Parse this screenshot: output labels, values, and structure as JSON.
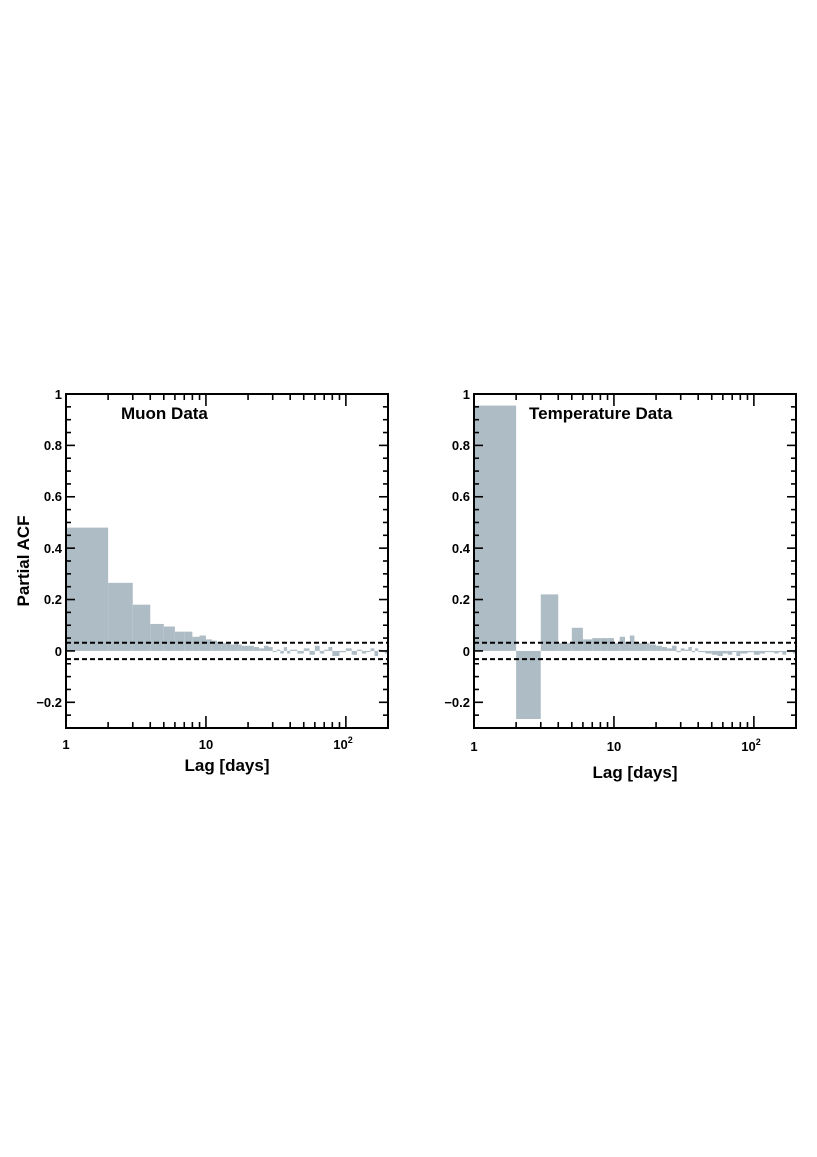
{
  "colors": {
    "bar": "#aebcc5",
    "axis": "#000000"
  },
  "chart_data": [
    {
      "type": "bar",
      "title": "Muon Data",
      "xlabel": "Lag [days]",
      "ylabel": "Partial ACF",
      "xscale": "log",
      "xlim": [
        1,
        200
      ],
      "ylim": [
        -0.3,
        1.0
      ],
      "x_ticks": [
        "1",
        "10",
        "10",
        "2"
      ],
      "y_ticks": [
        "1",
        "0.8",
        "0.6",
        "0.4",
        "0.2",
        "0",
        "−0.2"
      ],
      "confidence_band": [
        -0.032,
        0.032
      ],
      "lags": [
        1,
        2,
        3,
        4,
        5,
        6,
        7,
        8,
        9,
        10,
        11,
        12,
        13,
        14,
        15,
        16,
        17,
        18,
        19,
        20,
        22,
        24,
        26,
        28,
        30,
        32,
        34,
        36,
        38,
        40,
        45,
        50,
        55,
        60,
        65,
        70,
        75,
        80,
        90,
        100,
        110,
        120,
        130,
        140,
        150,
        160,
        170,
        180,
        190,
        200
      ],
      "values": [
        0.48,
        0.265,
        0.18,
        0.105,
        0.095,
        0.075,
        0.075,
        0.055,
        0.06,
        0.045,
        0.04,
        0.035,
        0.03,
        0.03,
        0.025,
        0.03,
        0.025,
        0.02,
        0.02,
        0.02,
        0.015,
        0.01,
        0.02,
        0.015,
        0.0,
        0.005,
        -0.01,
        0.015,
        -0.01,
        0.005,
        -0.01,
        0.01,
        -0.015,
        0.02,
        -0.01,
        0.005,
        0.015,
        -0.02,
        -0.005,
        0.01,
        -0.015,
        0.005,
        -0.01,
        0.0,
        0.01,
        -0.02,
        0.005,
        0.0,
        -0.01,
        0.01
      ]
    },
    {
      "type": "bar",
      "title": "Temperature Data",
      "xlabel": "Lag [days]",
      "ylabel": "",
      "xscale": "log",
      "xlim": [
        1,
        200
      ],
      "ylim": [
        -0.3,
        1.0
      ],
      "x_ticks": [
        "1",
        "10",
        "10",
        "2"
      ],
      "y_ticks": [
        "1",
        "0.8",
        "0.6",
        "0.4",
        "0.2",
        "0",
        "−0.2"
      ],
      "confidence_band": [
        -0.032,
        0.032
      ],
      "lags": [
        1,
        2,
        3,
        4,
        5,
        6,
        7,
        8,
        9,
        10,
        11,
        12,
        13,
        14,
        15,
        16,
        17,
        18,
        19,
        20,
        22,
        24,
        26,
        28,
        30,
        32,
        34,
        36,
        38,
        40,
        45,
        50,
        55,
        60,
        65,
        70,
        75,
        80,
        90,
        100,
        110,
        120,
        130,
        140,
        150,
        160,
        170,
        180,
        190,
        200
      ],
      "values": [
        0.955,
        -0.265,
        0.22,
        0.03,
        0.09,
        0.045,
        0.05,
        0.05,
        0.05,
        0.03,
        0.055,
        0.035,
        0.06,
        0.035,
        0.03,
        0.03,
        0.03,
        0.025,
        0.025,
        0.02,
        0.015,
        0.01,
        0.02,
        0.0,
        0.01,
        0.005,
        0.015,
        -0.005,
        0.01,
        0.0,
        -0.01,
        -0.015,
        -0.02,
        -0.01,
        -0.015,
        0.0,
        -0.02,
        -0.01,
        -0.005,
        -0.015,
        -0.01,
        0.0,
        -0.005,
        -0.01,
        0.0,
        -0.015,
        -0.005,
        0.0,
        -0.01,
        -0.005
      ]
    }
  ]
}
